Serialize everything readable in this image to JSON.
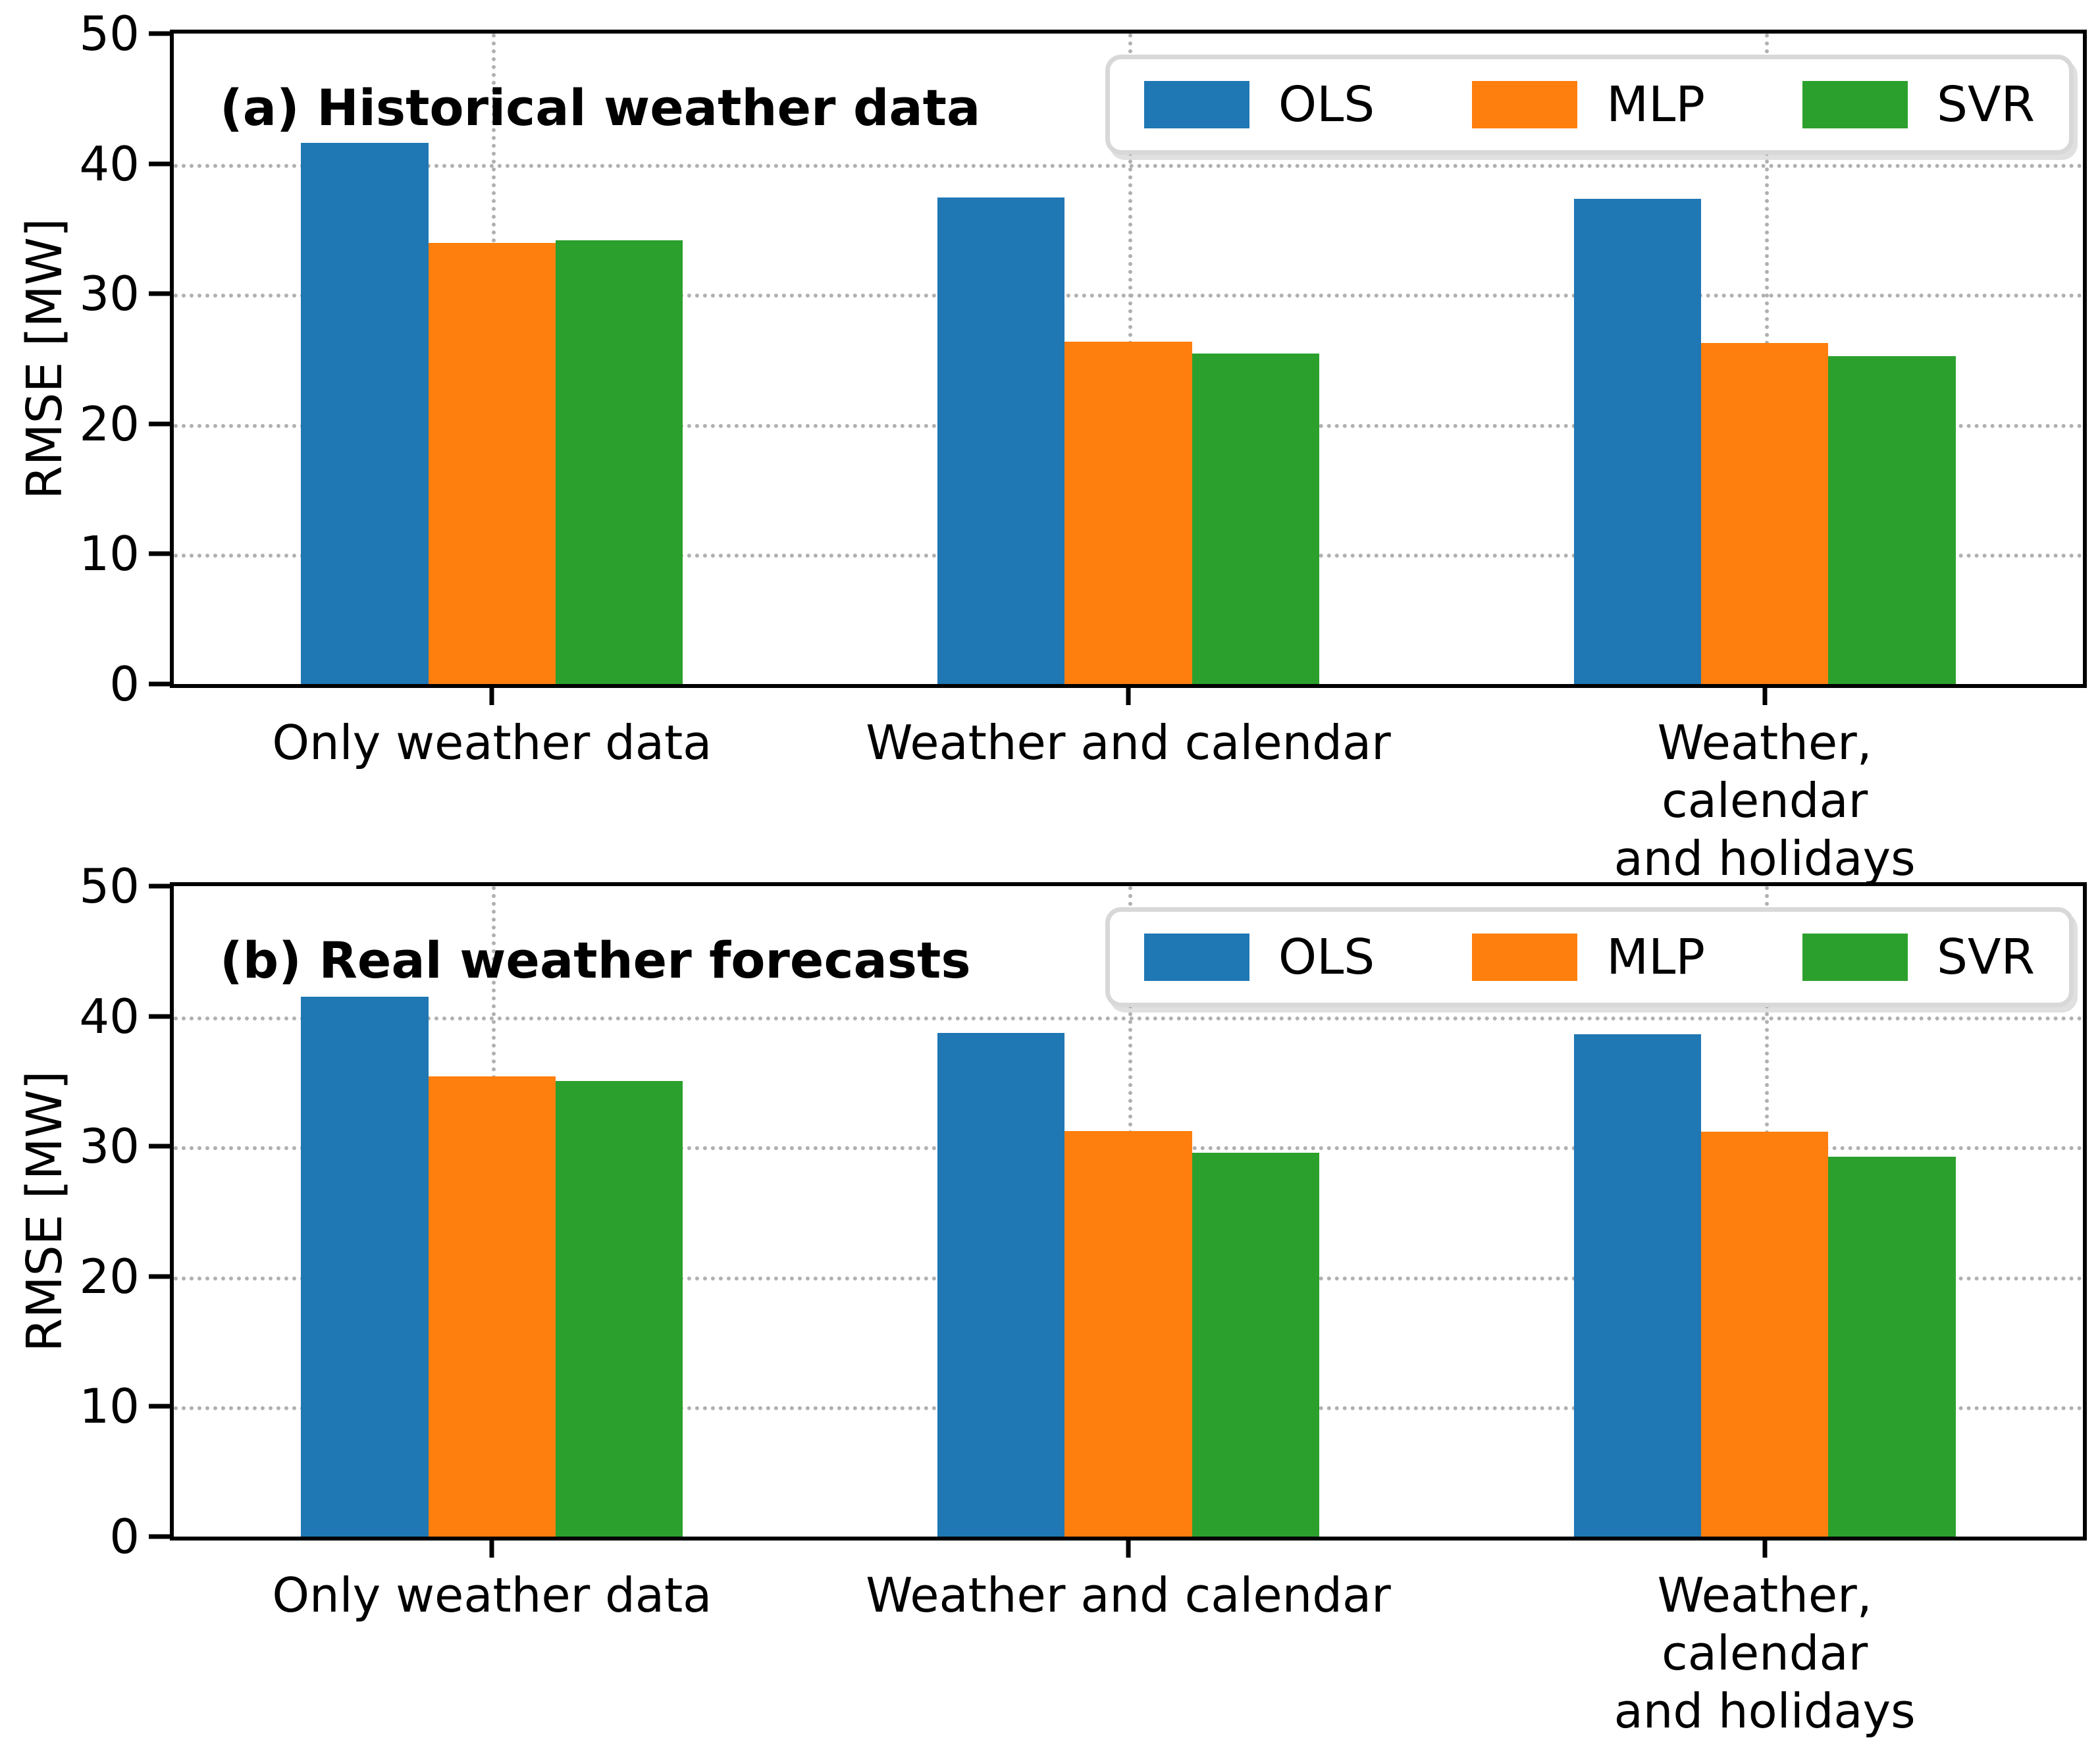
{
  "figure": {
    "background": "#ffffff"
  },
  "style": {
    "axis_color": "#000000",
    "grid_color": "#b0b0b0",
    "text_color": "#000000",
    "legend_border_color": "#d8d8d8"
  },
  "legend": {
    "position": "upper right",
    "entries": [
      {
        "label": "OLS",
        "color": "#1f77b4"
      },
      {
        "label": "MLP",
        "color": "#ff7f0e"
      },
      {
        "label": "SVR",
        "color": "#2ca02c"
      }
    ]
  },
  "chart_data": [
    {
      "type": "bar",
      "title": "(a) Historical weather data",
      "ylabel": "RMSE [MW]",
      "xlabel": "",
      "ylim": [
        0,
        50
      ],
      "yticks": [
        0,
        10,
        20,
        30,
        40,
        50
      ],
      "grid": "dotted, both axes",
      "legend_position": "upper right",
      "categories": [
        "Only weather data",
        "Weather and calendar",
        "Weather, calendar\nand holidays"
      ],
      "series": [
        {
          "name": "OLS",
          "color": "#1f77b4",
          "values": [
            41.6,
            37.4,
            37.3
          ]
        },
        {
          "name": "MLP",
          "color": "#ff7f0e",
          "values": [
            33.9,
            26.3,
            26.2
          ]
        },
        {
          "name": "SVR",
          "color": "#2ca02c",
          "values": [
            34.1,
            25.4,
            25.2
          ]
        }
      ]
    },
    {
      "type": "bar",
      "title": "(b) Real weather forecasts",
      "ylabel": "RMSE [MW]",
      "xlabel": "",
      "ylim": [
        0,
        50
      ],
      "yticks": [
        0,
        10,
        20,
        30,
        40,
        50
      ],
      "grid": "dotted, both axes",
      "legend_position": "upper right",
      "categories": [
        "Only weather data",
        "Weather and calendar",
        "Weather, calendar\nand holidays"
      ],
      "series": [
        {
          "name": "OLS",
          "color": "#1f77b4",
          "values": [
            41.5,
            38.7,
            38.6
          ]
        },
        {
          "name": "MLP",
          "color": "#ff7f0e",
          "values": [
            35.4,
            31.2,
            31.1
          ]
        },
        {
          "name": "SVR",
          "color": "#2ca02c",
          "values": [
            35.0,
            29.5,
            29.2
          ]
        }
      ]
    }
  ]
}
